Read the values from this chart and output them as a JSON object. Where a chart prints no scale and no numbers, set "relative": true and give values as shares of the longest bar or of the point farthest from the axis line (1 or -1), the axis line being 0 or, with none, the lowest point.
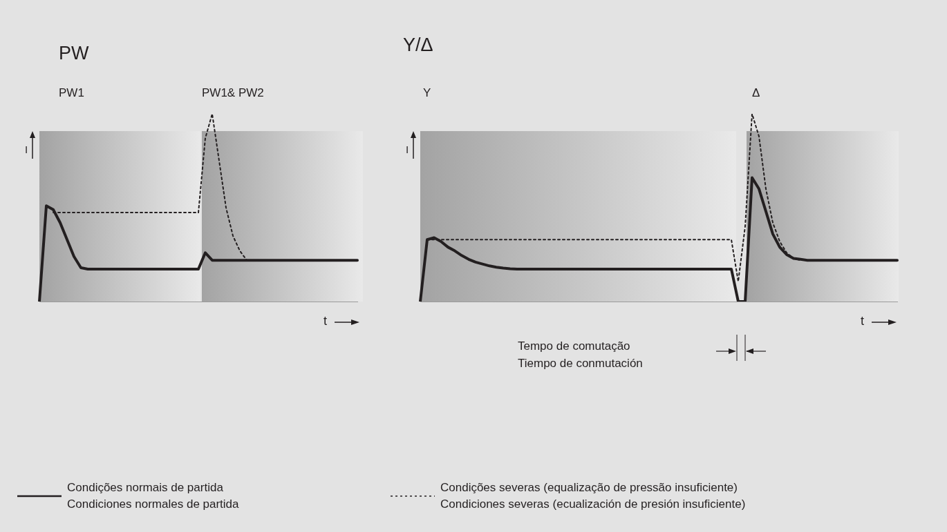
{
  "chart_data": [
    {
      "type": "line",
      "title": "PW",
      "xlabel": "t",
      "ylabel": "I",
      "relative": true,
      "legend": "bottom",
      "marker": "none",
      "annotations": [
        "PW1",
        "PW1& PW2"
      ],
      "categories": [
        null,
        null,
        null,
        null,
        null,
        null,
        null,
        null,
        null,
        null,
        null,
        null,
        null,
        null,
        null,
        null,
        null,
        null,
        null,
        null,
        null,
        null,
        null,
        null,
        null,
        null,
        null,
        null,
        null,
        null,
        null,
        null,
        null,
        null,
        null,
        null,
        null,
        null,
        null,
        null,
        null,
        null,
        null,
        null,
        null,
        null,
        null
      ],
      "series": [
        {
          "name": "Condições normais de partida\nCondiciones normales de partida",
          "color": "#231f20",
          "line_style": "solid",
          "values": [
            0,
            0.51,
            0.49,
            0.42,
            0.33,
            0.24,
            0.18,
            0.173,
            0.173,
            0.173,
            0.173,
            0.173,
            0.173,
            0.173,
            0.173,
            0.173,
            0.173,
            0.173,
            0.173,
            0.173,
            0.173,
            0.173,
            0.173,
            0.173,
            0.26,
            0.22,
            0.22,
            0.22,
            0.22,
            0.22,
            0.22,
            0.22,
            0.22,
            0.22,
            0.22,
            0.22,
            0.22,
            0.22,
            0.22,
            0.22,
            0.22,
            0.22,
            0.22,
            0.22,
            0.22,
            0.22,
            0.22
          ]
        },
        {
          "name": "Condições severas (equalização de pressão insuficiente)\nCondiciones severas (ecualización de presión insuficiente)",
          "color": "#231f20",
          "line_style": "dotted",
          "values": [
            null,
            null,
            0.474,
            0.474,
            0.474,
            0.474,
            0.474,
            0.474,
            0.474,
            0.474,
            0.474,
            0.474,
            0.474,
            0.474,
            0.474,
            0.474,
            0.474,
            0.474,
            0.474,
            0.474,
            0.474,
            0.474,
            0.474,
            0.474,
            0.87,
            1,
            0.75,
            0.5,
            0.35,
            0.27,
            0.22,
            null,
            null,
            null,
            null,
            null,
            null,
            null,
            null,
            null,
            null,
            null,
            null,
            null,
            null,
            null,
            null
          ]
        }
      ]
    },
    {
      "type": "line",
      "title": "Y/Δ",
      "xlabel": "t",
      "ylabel": "I",
      "relative": true,
      "marker": "none",
      "annotations": [
        "Y",
        "Δ",
        "Tempo de comutação",
        "Tiempo de conmutación"
      ],
      "categories": [
        null,
        null,
        null,
        null,
        null,
        null,
        null,
        null,
        null,
        null,
        null,
        null,
        null,
        null,
        null,
        null,
        null,
        null,
        null,
        null,
        null,
        null,
        null,
        null,
        null,
        null,
        null,
        null,
        null,
        null,
        null,
        null,
        null,
        null,
        null,
        null,
        null,
        null,
        null,
        null,
        null,
        null,
        null,
        null,
        null,
        null,
        null,
        null,
        null,
        null,
        null,
        null,
        null,
        null,
        null,
        null,
        null,
        null,
        null,
        null,
        null,
        null,
        null,
        null,
        null,
        null,
        null,
        null,
        null,
        null
      ],
      "series": [
        {
          "color": "#231f20",
          "line_style": "solid",
          "values": [
            0,
            0.33,
            0.34,
            0.32,
            0.29,
            0.27,
            0.245,
            0.225,
            0.21,
            0.2,
            0.19,
            0.183,
            0.178,
            0.175,
            0.173,
            0.173,
            0.173,
            0.173,
            0.173,
            0.173,
            0.173,
            0.173,
            0.173,
            0.173,
            0.173,
            0.173,
            0.173,
            0.173,
            0.173,
            0.173,
            0.173,
            0.173,
            0.173,
            0.173,
            0.173,
            0.173,
            0.173,
            0.173,
            0.173,
            0.173,
            0.173,
            0.173,
            0.173,
            0.173,
            0.173,
            0.173,
            0,
            0,
            0.66,
            0.6,
            0.48,
            0.36,
            0.29,
            0.25,
            0.23,
            0.225,
            0.22,
            0.22,
            0.22,
            0.22,
            0.22,
            0.22,
            0.22,
            0.22,
            0.22,
            0.22,
            0.22,
            0.22,
            0.22,
            0.22
          ]
        },
        {
          "color": "#231f20",
          "line_style": "dotted",
          "values": [
            null,
            0.33,
            0.33,
            0.33,
            0.33,
            0.33,
            0.33,
            0.33,
            0.33,
            0.33,
            0.33,
            0.33,
            0.33,
            0.33,
            0.33,
            0.33,
            0.33,
            0.33,
            0.33,
            0.33,
            0.33,
            0.33,
            0.33,
            0.33,
            0.33,
            0.33,
            0.33,
            0.33,
            0.33,
            0.33,
            0.33,
            0.33,
            0.33,
            0.33,
            0.33,
            0.33,
            0.33,
            0.33,
            0.33,
            0.33,
            0.33,
            0.33,
            0.33,
            0.33,
            0.33,
            0.33,
            0.107,
            0.4,
            1,
            0.88,
            0.6,
            0.42,
            0.32,
            0.26,
            0.23,
            0.22,
            null,
            null,
            null,
            null,
            null,
            null,
            null,
            null,
            null,
            null,
            null,
            null,
            null,
            null
          ]
        }
      ]
    }
  ]
}
